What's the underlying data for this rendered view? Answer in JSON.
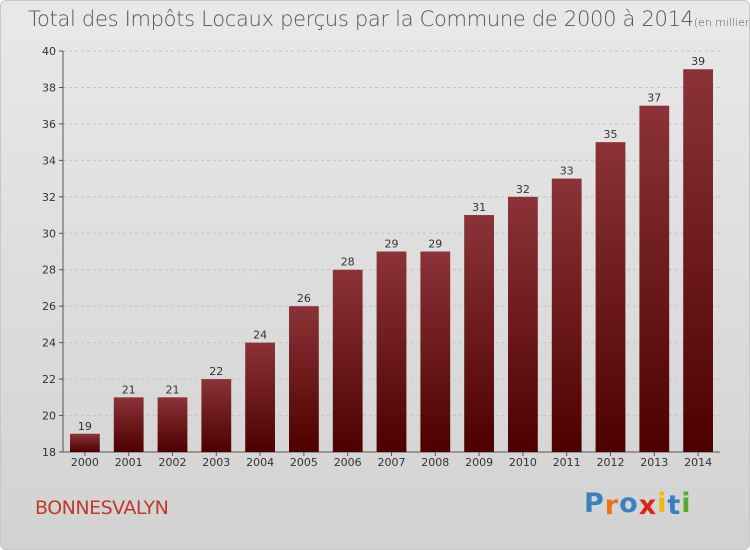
{
  "title": "Total des Impôts Locaux perçus par la Commune de 2000 à 2014",
  "title_unit": "(en milliers d'€)",
  "commune": "BONNESVALYN",
  "logo": {
    "text": "Proxiti",
    "letters": [
      "P",
      "r",
      "o",
      "x",
      "i",
      "t",
      "i"
    ],
    "colors": [
      "#3a7fc1",
      "#e8731a",
      "#3a7fc1",
      "#d9261c",
      "#f2b705",
      "#3a7fc1",
      "#5aa832"
    ]
  },
  "colors": {
    "bar_top": "#8b3338",
    "bar_bottom": "#4d0000",
    "accent": "#c0392b"
  },
  "chart_data": {
    "type": "bar",
    "title": "Total des Impôts Locaux perçus par la Commune de 2000 à 2014",
    "xlabel": "",
    "ylabel": "",
    "ylim": [
      18,
      40
    ],
    "yticks": [
      18,
      20,
      22,
      24,
      26,
      28,
      30,
      32,
      34,
      36,
      38,
      40
    ],
    "grid": true,
    "categories": [
      "2000",
      "2001",
      "2002",
      "2003",
      "2004",
      "2005",
      "2006",
      "2007",
      "2008",
      "2009",
      "2010",
      "2011",
      "2012",
      "2013",
      "2014"
    ],
    "values": [
      19,
      21,
      21,
      22,
      24,
      26,
      28,
      29,
      29,
      31,
      32,
      33,
      35,
      37,
      39
    ]
  }
}
